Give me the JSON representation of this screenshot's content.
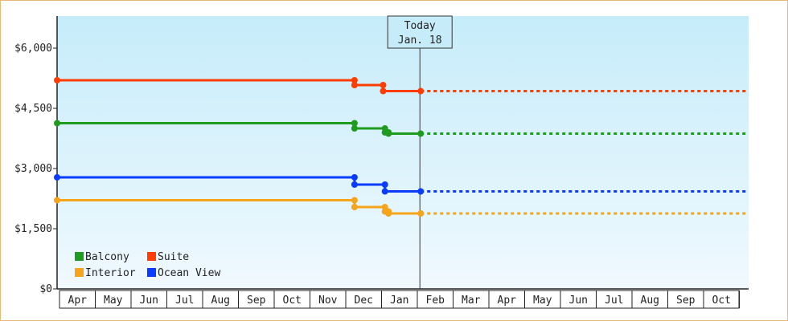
{
  "chart_data": {
    "type": "line",
    "currency_prefix": "$",
    "y_ticks": [
      0,
      1500,
      3000,
      4500,
      6000
    ],
    "y_tick_labels": [
      "$0",
      "$1,500",
      "$3,000",
      "$4,500",
      "$6,000"
    ],
    "ylim": [
      0,
      6800
    ],
    "months": [
      "Apr",
      "May",
      "Jun",
      "Jul",
      "Aug",
      "Sep",
      "Oct",
      "Nov",
      "Dec",
      "Jan",
      "Feb",
      "Mar",
      "Apr",
      "May",
      "Jun",
      "Jul",
      "Aug",
      "Sep",
      "Oct"
    ],
    "today_label": "Today",
    "today_date": "Jan. 18",
    "legend": [
      {
        "name": "Balcony",
        "color": "#1f9b1f"
      },
      {
        "name": "Suite",
        "color": "#ff3d00"
      },
      {
        "name": "Interior",
        "color": "#f5a41b"
      },
      {
        "name": "Ocean View",
        "color": "#0a3cff"
      }
    ],
    "series": [
      {
        "name": "Suite",
        "color": "#ff3d00",
        "points": [
          [
            0.0,
            5200
          ],
          [
            7.75,
            5200
          ],
          [
            7.75,
            5080
          ],
          [
            8.55,
            5080
          ],
          [
            8.55,
            4930
          ],
          [
            9.6,
            4930
          ]
        ],
        "projected_value": 4930
      },
      {
        "name": "Balcony",
        "color": "#1f9b1f",
        "points": [
          [
            0.0,
            4130
          ],
          [
            7.75,
            4130
          ],
          [
            7.75,
            4000
          ],
          [
            8.6,
            4000
          ],
          [
            8.6,
            3900
          ],
          [
            8.7,
            3900
          ],
          [
            8.7,
            3870
          ],
          [
            9.6,
            3870
          ]
        ],
        "projected_value": 3870
      },
      {
        "name": "Ocean View",
        "color": "#0a3cff",
        "points": [
          [
            0.0,
            2780
          ],
          [
            7.75,
            2780
          ],
          [
            7.75,
            2600
          ],
          [
            8.6,
            2600
          ],
          [
            8.6,
            2430
          ],
          [
            9.6,
            2430
          ]
        ],
        "projected_value": 2430
      },
      {
        "name": "Interior",
        "color": "#f5a41b",
        "points": [
          [
            0.0,
            2210
          ],
          [
            7.75,
            2210
          ],
          [
            7.75,
            2040
          ],
          [
            8.6,
            2040
          ],
          [
            8.6,
            1930
          ],
          [
            8.7,
            1930
          ],
          [
            8.7,
            1880
          ],
          [
            9.6,
            1880
          ]
        ],
        "projected_value": 1880
      }
    ],
    "today_month_position": 9.6,
    "grid": false,
    "legend_placement": "bottom-left"
  }
}
